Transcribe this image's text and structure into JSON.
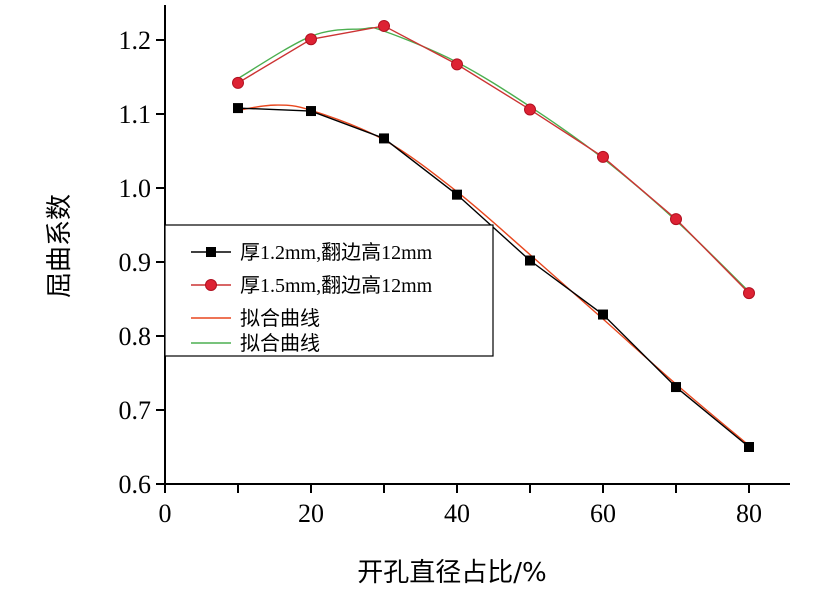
{
  "chart_data": {
    "type": "line",
    "xlabel": "开孔直径占比/%",
    "ylabel": "屈曲系数",
    "xlim": [
      0,
      85
    ],
    "ylim": [
      0.6,
      1.25
    ],
    "xticks": [
      0,
      20,
      40,
      60,
      80
    ],
    "yticks": [
      0.6,
      0.7,
      0.8,
      0.9,
      1.0,
      1.1,
      1.2
    ],
    "xtick_labels": [
      "0",
      "20",
      "40",
      "60",
      "80"
    ],
    "ytick_labels": [
      "0.6",
      "0.7",
      "0.8",
      "0.9",
      "1.0",
      "1.1",
      "1.2"
    ],
    "grid": false,
    "legend_position": "left",
    "series": [
      {
        "name": "厚1.2mm,翻边高12mm",
        "color": "#000000",
        "marker": "square",
        "x": [
          10,
          20,
          30,
          40,
          50,
          60,
          70,
          80
        ],
        "y": [
          1.108,
          1.104,
          1.067,
          0.991,
          0.902,
          0.829,
          0.731,
          0.65
        ]
      },
      {
        "name": "厚1.5mm,翻边高12mm",
        "color": "#cc3333",
        "marker": "circle",
        "x": [
          10,
          20,
          30,
          40,
          50,
          60,
          70,
          80
        ],
        "y": [
          1.142,
          1.201,
          1.219,
          1.167,
          1.106,
          1.042,
          0.958,
          0.858
        ]
      },
      {
        "name": "拟合曲线",
        "color": "#e8471e",
        "marker": "none",
        "x": [
          10,
          15,
          20,
          30,
          40,
          50,
          60,
          70,
          80
        ],
        "y": [
          1.105,
          1.112,
          1.105,
          1.065,
          0.995,
          0.91,
          0.823,
          0.735,
          0.652
        ]
      },
      {
        "name": "拟合曲线",
        "color": "#4caf50",
        "marker": "none",
        "x": [
          10,
          20,
          27,
          30,
          40,
          50,
          60,
          70,
          80
        ],
        "y": [
          1.148,
          1.205,
          1.215,
          1.212,
          1.17,
          1.11,
          1.04,
          0.956,
          0.86
        ]
      }
    ]
  }
}
